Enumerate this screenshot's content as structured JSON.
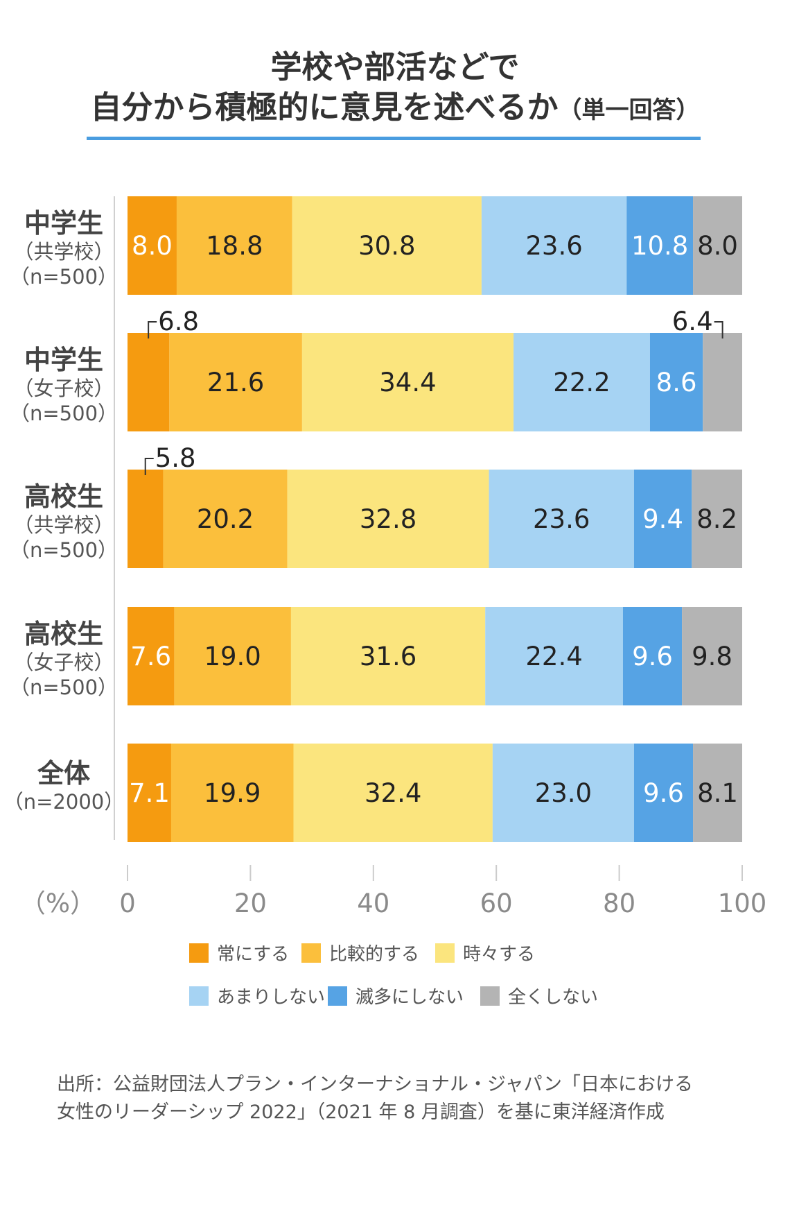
{
  "chart_data": {
    "type": "bar",
    "orientation": "horizontal-stacked",
    "title_lines": [
      "学校や部活などで",
      "自分から積極的に意見を述べるか"
    ],
    "title_suffix": "（単一回答）",
    "categories": [
      {
        "name": "中学生",
        "sub": [
          "（共学校）",
          "（n=500）"
        ]
      },
      {
        "name": "中学生",
        "sub": [
          "（女子校）",
          "（n=500）"
        ]
      },
      {
        "name": "高校生",
        "sub": [
          "（共学校）",
          "（n=500）"
        ]
      },
      {
        "name": "高校生",
        "sub": [
          "（女子校）",
          "（n=500）"
        ]
      },
      {
        "name": "全体",
        "sub": [
          "（n=2000）"
        ]
      }
    ],
    "series": [
      {
        "name": "常にする",
        "color": "#f59b10",
        "text_color": "#ffffff",
        "values": [
          8.0,
          6.8,
          5.8,
          7.6,
          7.1
        ]
      },
      {
        "name": "比較的する",
        "color": "#fbbf3c",
        "text_color": "#222222",
        "values": [
          18.8,
          21.6,
          20.2,
          19.0,
          19.9
        ]
      },
      {
        "name": "時々する",
        "color": "#fbe57e",
        "text_color": "#222222",
        "values": [
          30.8,
          34.4,
          32.8,
          31.6,
          32.4
        ]
      },
      {
        "name": "あまりしない",
        "color": "#a6d3f3",
        "text_color": "#222222",
        "values": [
          23.6,
          22.2,
          23.6,
          22.4,
          23.0
        ]
      },
      {
        "name": "滅多にしない",
        "color": "#56a3e4",
        "text_color": "#ffffff",
        "values": [
          10.8,
          8.6,
          9.4,
          9.6,
          9.6
        ]
      },
      {
        "name": "全くしない",
        "color": "#b4b4b4",
        "text_color": "#222222",
        "values": [
          8.0,
          6.4,
          8.2,
          9.8,
          8.1
        ]
      }
    ],
    "x_unit_label": "（%）",
    "xlim": [
      0,
      100
    ],
    "xticks": [
      0,
      20,
      40,
      60,
      80,
      100
    ],
    "legend_position": "bottom",
    "source": [
      "出所：公益財団法人プラン・インターナショナル・ジャパン「日本における",
      "女性のリーダーシップ 2022」（2021 年 8 月調査）を基に東洋経済作成"
    ]
  }
}
